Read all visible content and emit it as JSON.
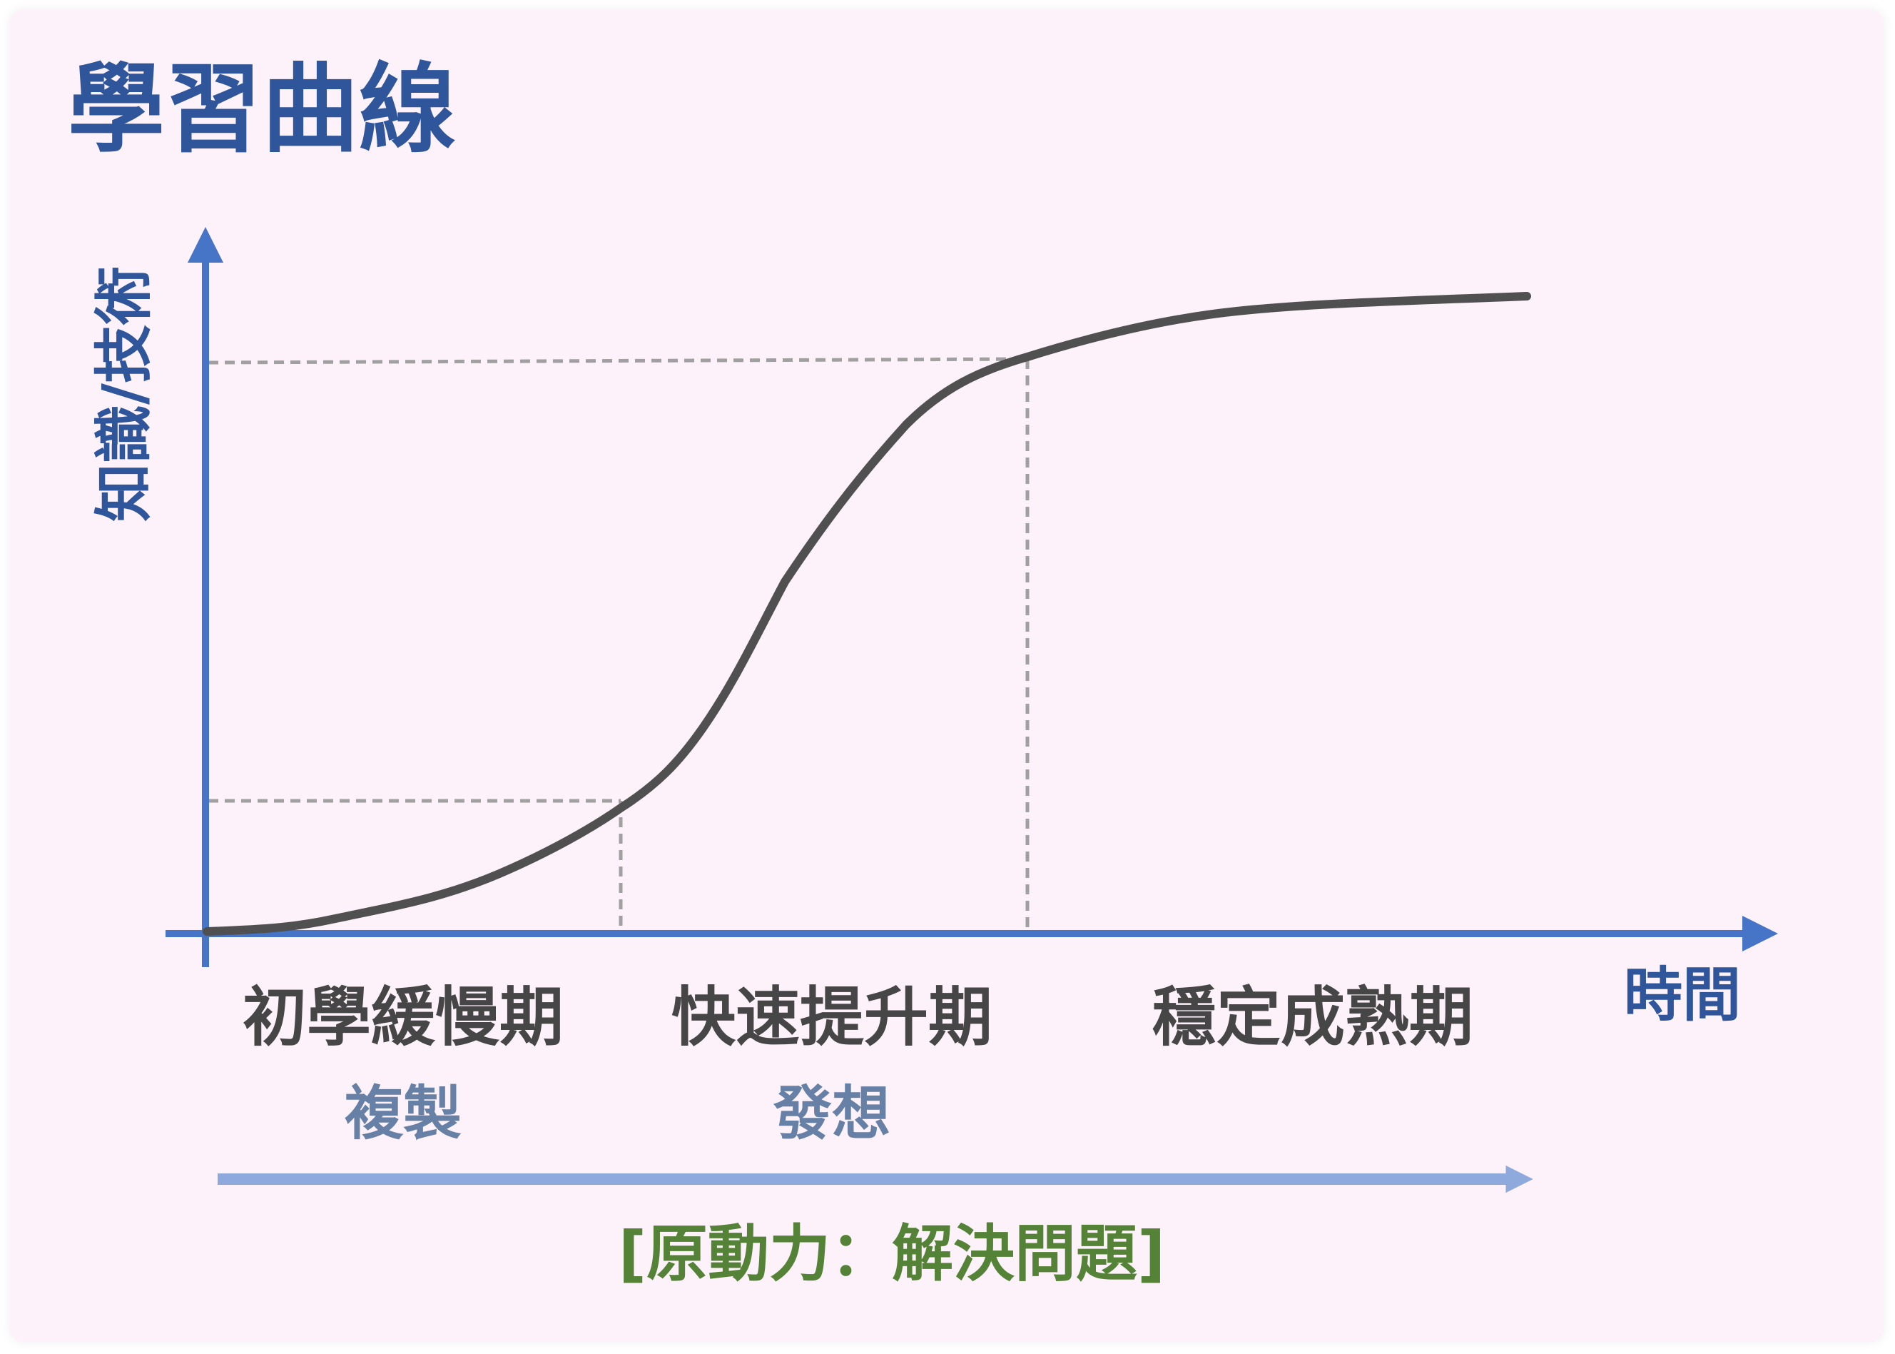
{
  "title": "學習曲線",
  "y_axis_label": "知識/技術",
  "x_axis_label": "時間",
  "phases": [
    {
      "label": "初學緩慢期",
      "sub_label": "複製"
    },
    {
      "label": "快速提升期",
      "sub_label": "發想"
    },
    {
      "label": "穩定成熟期",
      "sub_label": ""
    }
  ],
  "motive_label": "[原動力：解決問題]",
  "colors": {
    "background": "#fdf1fa",
    "title": "#2f569a",
    "axis": "#4674c6",
    "curve": "#505050",
    "guide": "#a0a0a0",
    "phase_text": "#464646",
    "sub_text": "#6680a6",
    "motive_arrow": "#8eaadc",
    "motive_text": "#548236"
  }
}
